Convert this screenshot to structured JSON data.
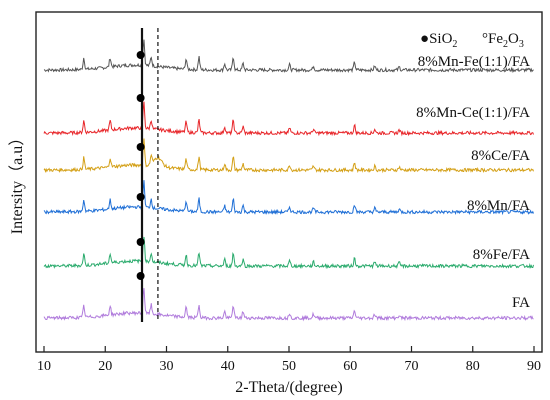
{
  "chart_data": {
    "type": "line",
    "xlabel": "2-Theta/(degree)",
    "ylabel": "Intersity（a.u）",
    "xlim": [
      10,
      90
    ],
    "xticks": [
      10,
      20,
      30,
      40,
      50,
      60,
      70,
      80,
      90
    ],
    "grid": false,
    "legend": {
      "placement": "top-right",
      "entries": [
        {
          "marker": "●",
          "text": "SiO",
          "sub": "2"
        },
        {
          "marker": "°",
          "text": "Fe",
          "sub": "2",
          "text2": "O",
          "sub2": "3"
        }
      ]
    },
    "reference_lines": [
      {
        "x": 26.0,
        "style": "solid"
      },
      {
        "x": 28.6,
        "style": "dashed"
      }
    ],
    "peaks": [
      {
        "x": 16.5,
        "h": 0.45
      },
      {
        "x": 20.8,
        "h": 0.35
      },
      {
        "x": 26.3,
        "h": 1.0
      },
      {
        "x": 27.5,
        "h": 0.35
      },
      {
        "x": 33.2,
        "h": 0.4
      },
      {
        "x": 35.3,
        "h": 0.5
      },
      {
        "x": 39.5,
        "h": 0.25
      },
      {
        "x": 40.9,
        "h": 0.5
      },
      {
        "x": 42.5,
        "h": 0.25
      },
      {
        "x": 50.1,
        "h": 0.2
      },
      {
        "x": 54.0,
        "h": 0.15
      },
      {
        "x": 60.7,
        "h": 0.3
      },
      {
        "x": 64.0,
        "h": 0.15
      },
      {
        "x": 68.0,
        "h": 0.12
      }
    ],
    "series": [
      {
        "name": "8%Mn-Fe(1:1)/FA",
        "color": "#555555",
        "baseline": 0.0,
        "hump_x": 0,
        "hump_h": 0
      },
      {
        "name": "8%Mn-Ce(1:1)/FA",
        "color": "#e8262a",
        "baseline": 0.0,
        "hump_x": 0,
        "hump_h": 0
      },
      {
        "name": "8%Ce/FA",
        "color": "#d4a017",
        "baseline": 0.0,
        "hump_x": 28.6,
        "hump_h": 0.5
      },
      {
        "name": "8%Mn/FA",
        "color": "#1f6fd6",
        "baseline": 0.0,
        "hump_x": 0,
        "hump_h": 0
      },
      {
        "name": "8%Fe/FA",
        "color": "#2bab6d",
        "baseline": 0.0,
        "hump_x": 0,
        "hump_h": 0
      },
      {
        "name": "FA",
        "color": "#b07bdc",
        "baseline": 0.0,
        "hump_x": 0,
        "hump_h": 0
      }
    ],
    "markers": [
      {
        "series": "8%Mn-Fe(1:1)/FA",
        "x": 26.1,
        "symbol": "●"
      },
      {
        "series": "8%Mn-Ce(1:1)/FA",
        "x": 26.1,
        "symbol": "●"
      },
      {
        "series": "8%Ce/FA",
        "x": 26.1,
        "symbol": "●"
      },
      {
        "series": "8%Mn/FA",
        "x": 26.1,
        "symbol": "●"
      },
      {
        "series": "8%Fe/FA",
        "x": 26.1,
        "symbol": "●"
      },
      {
        "series": "FA",
        "x": 26.1,
        "symbol": "●"
      }
    ]
  }
}
